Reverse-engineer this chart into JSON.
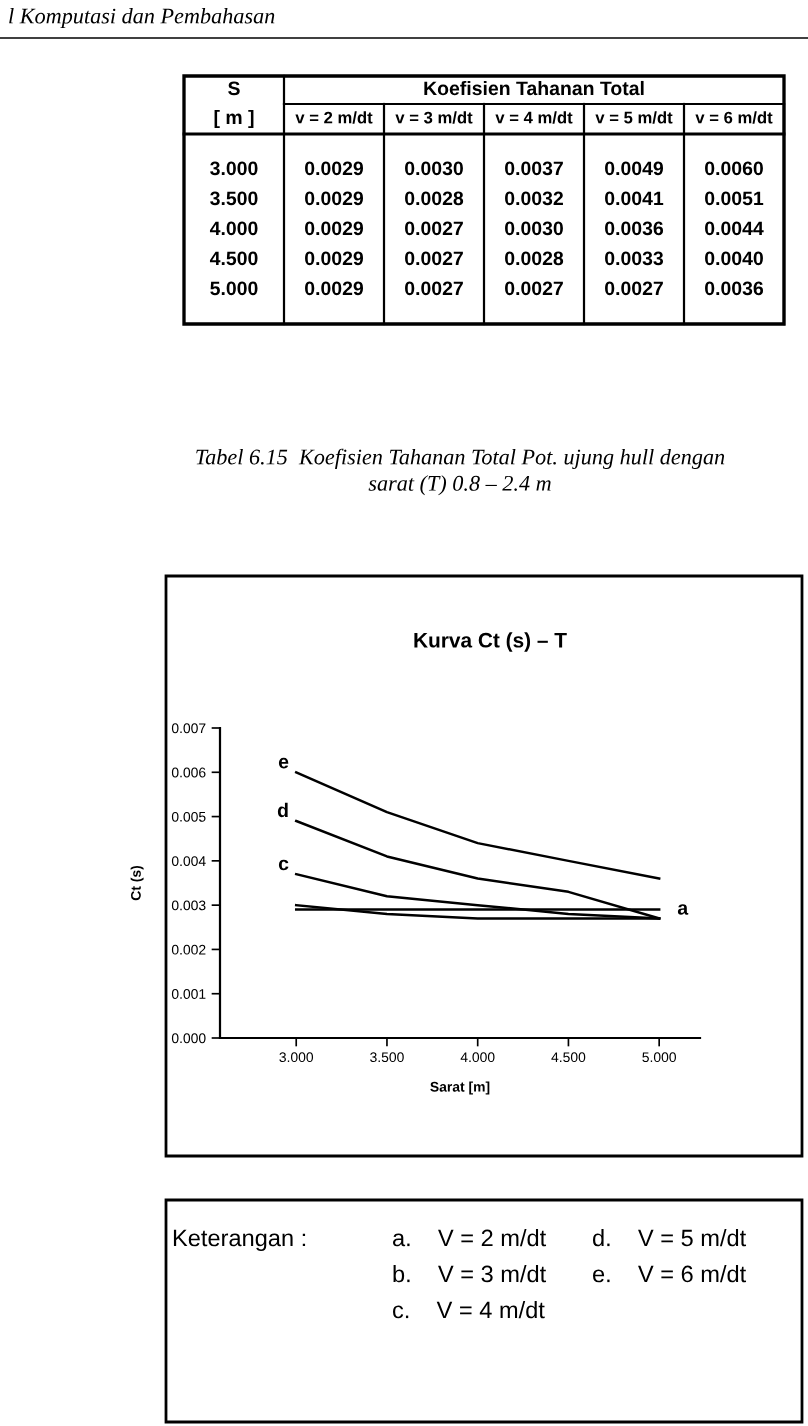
{
  "chart_data": {
    "type": "line",
    "title": "Kurva Ct (s) – T",
    "xlabel": "Sarat [m]",
    "ylabel": "Ct (s)",
    "categories": [
      "3.000",
      "3.500",
      "4.000",
      "4.500",
      "5.000"
    ],
    "series": [
      {
        "name": "a",
        "color": "#000000",
        "values": [
          0.0029,
          0.0029,
          0.0029,
          0.0029,
          0.0029
        ]
      },
      {
        "color": "#000000",
        "values": [
          0.003,
          0.0028,
          0.0027,
          0.0027,
          0.0027
        ]
      },
      {
        "name": "c",
        "color": "#000000",
        "values": [
          0.0037,
          0.0032,
          0.003,
          0.0028,
          0.0027
        ]
      },
      {
        "name": "d",
        "color": "#000000",
        "values": [
          0.0049,
          0.0041,
          0.0036,
          0.0033,
          0.0027
        ]
      },
      {
        "name": "e",
        "color": "#000000",
        "values": [
          0.006,
          0.0051,
          0.0044,
          0.004,
          0.0036
        ]
      }
    ],
    "ylim": [
      0,
      0.007
    ],
    "yticks": [
      {
        "value": 0,
        "label": "0.000"
      },
      {
        "value": 0.001,
        "label": "0.001"
      },
      {
        "value": 0.002,
        "label": "0.002"
      },
      {
        "value": 0.003,
        "label": "0.003"
      },
      {
        "value": 0.004,
        "label": "0.004"
      },
      {
        "value": 0.005,
        "label": "0.005"
      },
      {
        "value": 0.006,
        "label": "0.006"
      },
      {
        "value": 0.007,
        "label": "0.007"
      }
    ],
    "marker": "none",
    "line_style": "solid",
    "grid": false,
    "legend": false,
    "annotations": [
      "l Komputasi dan Pembahasan",
      "S",
      "[ m ]",
      "Koefisien Tahanan Total",
      "v = 2 m/dt",
      "v = 3 m/dt",
      "v = 4 m/dt",
      "v = 5 m/dt",
      "v = 6 m/dt",
      "Tabel 6.15  Koefisien Tahanan Total Pot. ujung hull dengan\nsarat (T) 0.8 – 2.4 m",
      "Keterangan :",
      "a.    V = 2 m/dt",
      "b.    V = 3 m/dt",
      "c.    V = 4 m/dt",
      "d.    V = 5 m/dt",
      "e.    V = 6 m/dt",
      "3.000",
      "0.0029",
      "0.0030",
      "0.0037",
      "0.0049",
      "0.0060",
      "3.500",
      "0.0029",
      "0.0028",
      "0.0032",
      "0.0041",
      "0.0051",
      "4.000",
      "0.0029",
      "0.0027",
      "0.0030",
      "0.0036",
      "0.0044",
      "4.500",
      "0.0029",
      "0.0027",
      "0.0028",
      "0.0033",
      "0.0040",
      "5.000",
      "0.0029",
      "0.0027",
      "0.0027",
      "0.0027",
      "0.0036"
    ]
  }
}
